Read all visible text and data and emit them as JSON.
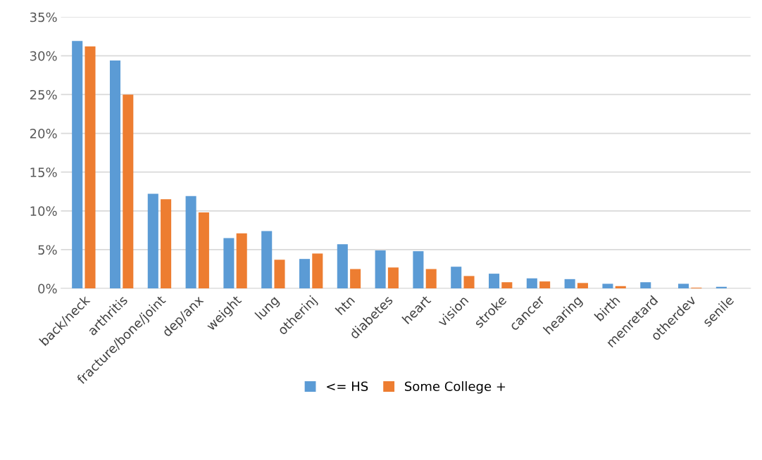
{
  "chart_data": {
    "type": "bar",
    "categories": [
      "back/neck",
      "arthritis",
      "fracture/bone/joint",
      "dep/anx",
      "weight",
      "lung",
      "otherinj",
      "htn",
      "diabetes",
      "heart",
      "vision",
      "stroke",
      "cancer",
      "hearing",
      "birth",
      "menretard",
      "otherdev",
      "senile"
    ],
    "series": [
      {
        "name": "<= HS",
        "color": "#5b9bd5",
        "values": [
          31.9,
          29.4,
          12.2,
          11.9,
          6.5,
          7.4,
          3.8,
          5.7,
          4.9,
          4.8,
          2.8,
          1.9,
          1.3,
          1.2,
          0.6,
          0.8,
          0.6,
          0.2
        ]
      },
      {
        "name": "Some College +",
        "color": "#ed7d31",
        "values": [
          31.2,
          25.0,
          11.5,
          9.8,
          7.1,
          3.7,
          4.5,
          2.5,
          2.7,
          2.5,
          1.6,
          0.8,
          0.9,
          0.7,
          0.3,
          0,
          0.1,
          null
        ]
      }
    ],
    "ylim": [
      0,
      35
    ],
    "yticks": [
      {
        "value": 0,
        "label": "0%"
      },
      {
        "value": 5,
        "label": "5%"
      },
      {
        "value": 10,
        "label": "10%"
      },
      {
        "value": 15,
        "label": "15%"
      },
      {
        "value": 20,
        "label": "20%"
      },
      {
        "value": 25,
        "label": "25%"
      },
      {
        "value": 30,
        "label": "30%"
      },
      {
        "value": 35,
        "label": "35%"
      }
    ],
    "grid": "y",
    "legend": "bottom"
  }
}
